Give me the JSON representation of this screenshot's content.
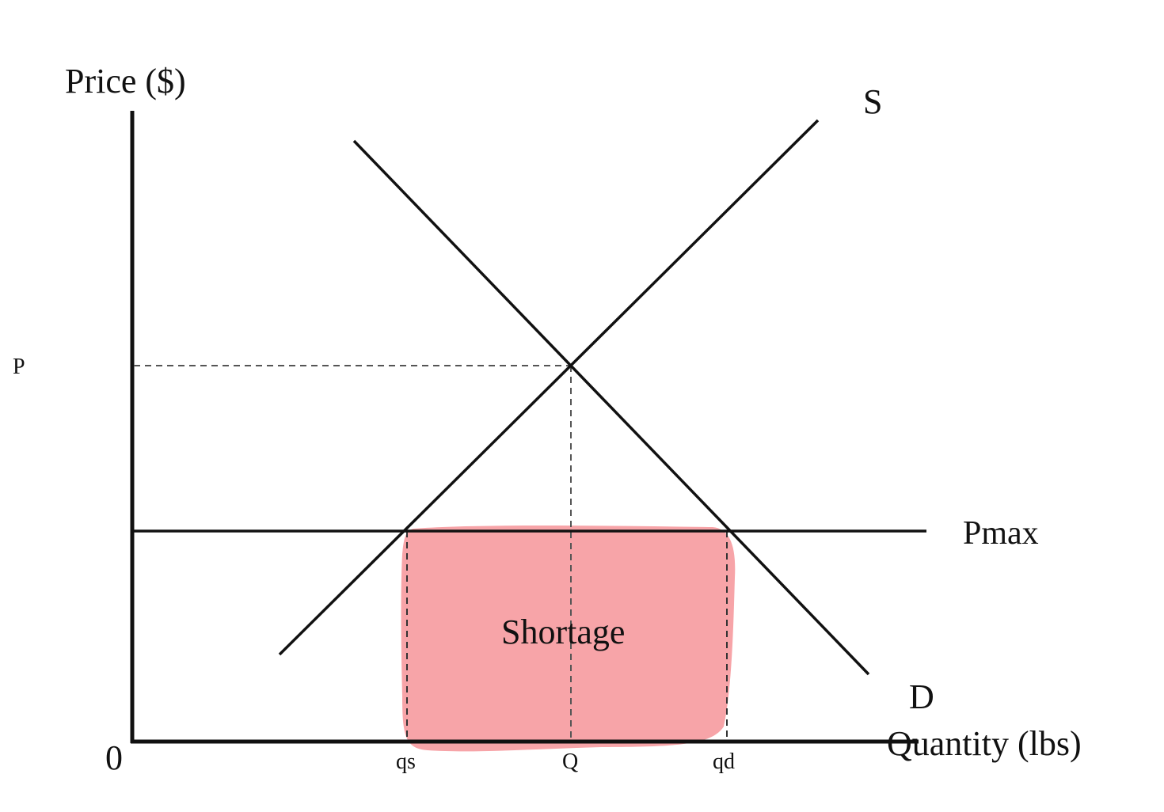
{
  "diagram": {
    "y_axis_label": "Price ($)",
    "x_axis_label": "Quantity (lbs)",
    "origin_label": "0",
    "price_label": "P",
    "price_ceiling_label": "Pmax",
    "supply_label": "S",
    "demand_label": "D",
    "quantity_supplied_label": "qs",
    "equilibrium_quantity_label": "Q",
    "quantity_demanded_label": "qd",
    "shortage_label": "Shortage",
    "shortage_color": "#f7a4a8"
  }
}
